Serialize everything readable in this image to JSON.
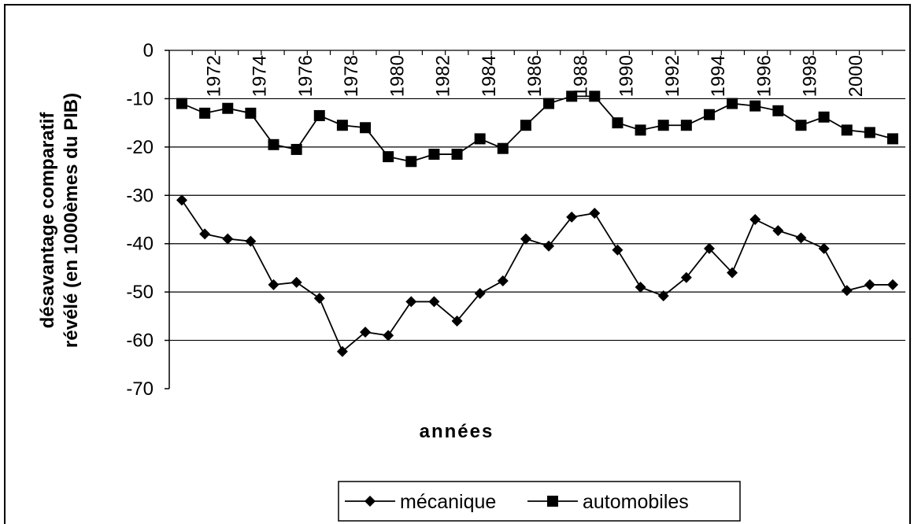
{
  "chart_data": {
    "type": "line",
    "y_label": [
      "désavantage comparatif",
      "révélé (en 1000èmes du PIB)"
    ],
    "x_label": "années",
    "categories": [
      null,
      null,
      "1972",
      null,
      "1974",
      null,
      "1976",
      null,
      "1978",
      null,
      "1980",
      null,
      "1982",
      null,
      "1984",
      null,
      "1986",
      null,
      "1988",
      null,
      "1990",
      null,
      "1992",
      null,
      "1994",
      null,
      "1996",
      null,
      "1998",
      null,
      "2000",
      null
    ],
    "series": [
      {
        "name": "mécanique",
        "color": "#000000",
        "marker": "diamond",
        "values": [
          -31,
          -38,
          -39,
          -39.5,
          -48.5,
          -48,
          -51.3,
          -62.3,
          -58.3,
          -59,
          -52,
          -52,
          -56,
          -50.3,
          -47.7,
          -39,
          -40.5,
          -34.5,
          -33.7,
          -41.3,
          -49,
          -50.8,
          -47,
          -41,
          -46,
          -35,
          -37.3,
          -38.8,
          -41,
          -49.7,
          -48.5,
          -48.5
        ]
      },
      {
        "name": "automobiles",
        "color": "#000000",
        "marker": "square",
        "values": [
          -11,
          -13,
          -12,
          -13,
          -19.5,
          -20.5,
          -13.5,
          -15.5,
          -16,
          -22,
          -23,
          -21.5,
          -21.5,
          -18.3,
          -20.3,
          -15.5,
          -11,
          -9.5,
          -9.5,
          -15,
          -16.5,
          -15.5,
          -15.5,
          -13.3,
          -11,
          -11.5,
          -12.5,
          -15.5,
          -13.8,
          -16.5,
          -17,
          -18.3
        ]
      }
    ],
    "ylim": [
      -70,
      0
    ],
    "yticks": [
      0,
      -10,
      -20,
      -30,
      -40,
      -50,
      -60,
      -70
    ],
    "grid": true,
    "legend": "bottom"
  }
}
